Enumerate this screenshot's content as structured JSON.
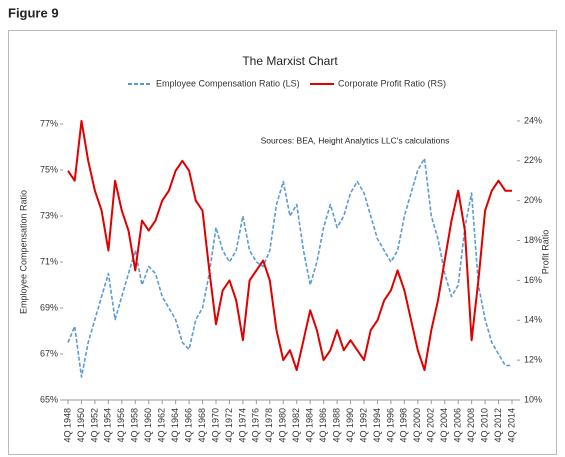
{
  "figure_label": "Figure 9",
  "chart_data": {
    "type": "line",
    "title": "The Marxist Chart",
    "annotation": "Sources: BEA, Height Analytics LLC's calculations",
    "ylabel": "Employee Compensation Ratio",
    "y2label": "Profit Ratio",
    "categories": [
      "4Q 1948",
      null,
      "4Q 1950",
      null,
      "4Q 1952",
      null,
      "4Q 1954",
      null,
      "4Q 1956",
      null,
      "4Q 1958",
      null,
      "4Q 1960",
      null,
      "4Q 1962",
      null,
      "4Q 1964",
      null,
      "4Q 1966",
      null,
      "4Q 1968",
      null,
      "4Q 1970",
      null,
      "4Q 1972",
      null,
      "4Q 1974",
      null,
      "4Q 1976",
      null,
      "4Q 1978",
      null,
      "4Q 1980",
      null,
      "4Q 1982",
      null,
      "4Q 1984",
      null,
      "4Q 1986",
      null,
      "4Q 1988",
      null,
      "4Q 1990",
      null,
      "4Q 1992",
      null,
      "4Q 1994",
      null,
      "4Q 1996",
      null,
      "4Q 1998",
      null,
      "4Q 2000",
      null,
      "4Q 2002",
      null,
      "4Q 2004",
      null,
      "4Q 2006",
      null,
      "4Q 2008",
      null,
      "4Q 2010",
      null,
      "4Q 2012",
      null,
      "4Q 2014"
    ],
    "series": [
      {
        "name": "Employee Compensation Ratio (LS)",
        "color": "#5b9bd5",
        "dashed": true,
        "axis": "y",
        "values": [
          67.5,
          68.2,
          66.0,
          67.5,
          68.5,
          69.5,
          70.5,
          68.5,
          69.5,
          70.5,
          71.5,
          70.0,
          70.8,
          70.5,
          69.5,
          69.0,
          68.5,
          67.5,
          67.2,
          68.5,
          69.0,
          70.5,
          72.5,
          71.5,
          71.0,
          71.5,
          73.0,
          71.5,
          71.0,
          70.8,
          71.5,
          73.5,
          74.5,
          73.0,
          73.5,
          71.5,
          70.0,
          71.0,
          72.5,
          73.5,
          72.5,
          73.0,
          74.0,
          74.5,
          74.0,
          73.0,
          72.0,
          71.5,
          71.0,
          71.5,
          73.0,
          74.0,
          75.0,
          75.5,
          73.0,
          72.0,
          70.5,
          69.5,
          70.0,
          72.5,
          74.0,
          70.0,
          68.5,
          67.5,
          67.0,
          66.5,
          66.5
        ]
      },
      {
        "name": "Corporate Profit Ratio (RS)",
        "color": "#e00000",
        "dashed": false,
        "axis": "y2",
        "values": [
          21.5,
          21.0,
          24.0,
          22.0,
          20.5,
          19.5,
          17.5,
          21.0,
          19.5,
          18.5,
          16.5,
          19.0,
          18.5,
          19.0,
          20.0,
          20.5,
          21.5,
          22.0,
          21.5,
          20.0,
          19.5,
          16.5,
          13.8,
          15.5,
          16.0,
          15.0,
          13.0,
          16.0,
          16.5,
          17.0,
          16.0,
          13.5,
          12.0,
          12.5,
          11.5,
          13.0,
          14.5,
          13.5,
          12.0,
          12.5,
          13.5,
          12.5,
          13.0,
          12.5,
          12.0,
          13.5,
          14.0,
          15.0,
          15.5,
          16.5,
          15.5,
          14.0,
          12.5,
          11.5,
          13.5,
          15.0,
          17.0,
          19.0,
          20.5,
          18.5,
          13.0,
          16.0,
          19.5,
          20.5,
          21.0,
          20.5,
          20.5
        ]
      }
    ],
    "ylim": [
      65,
      78
    ],
    "yticks": [
      {
        "value": 65,
        "label": "65%"
      },
      {
        "value": 67,
        "label": "67%"
      },
      {
        "value": 69,
        "label": "69%"
      },
      {
        "value": 71,
        "label": "71%"
      },
      {
        "value": 73,
        "label": "73%"
      },
      {
        "value": 75,
        "label": "75%"
      },
      {
        "value": 77,
        "label": "77%"
      }
    ],
    "y2lim": [
      10,
      25
    ],
    "y2ticks": [
      {
        "value": 10,
        "label": "10%"
      },
      {
        "value": 12,
        "label": "12%"
      },
      {
        "value": 14,
        "label": "14%"
      },
      {
        "value": 16,
        "label": "16%"
      },
      {
        "value": 18,
        "label": "18%"
      },
      {
        "value": 20,
        "label": "20%"
      },
      {
        "value": 22,
        "label": "22%"
      },
      {
        "value": 24,
        "label": "24%"
      }
    ],
    "grid": false,
    "legend": "top"
  }
}
